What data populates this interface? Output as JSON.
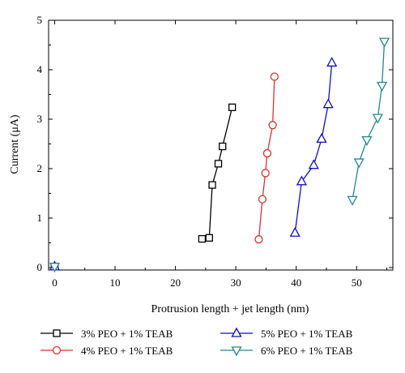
{
  "chart_data": {
    "type": "line",
    "xlabel": "Protrusion length + jet length (nm)",
    "ylabel": "Current (μA)",
    "xlim": [
      -1,
      56
    ],
    "ylim": [
      -0.05,
      5
    ],
    "xticks": [
      0,
      10,
      20,
      30,
      40,
      50
    ],
    "yticks": [
      0,
      1,
      2,
      3,
      4,
      5
    ],
    "grid": false,
    "legend_position": "bottom",
    "series": [
      {
        "name": "3% PEO + 1% TEAB",
        "color": "#000000",
        "marker": "square",
        "x": [
          0,
          24.4,
          25.6,
          26.1,
          27.1,
          27.8,
          29.4
        ],
        "y": [
          0.02,
          0.58,
          0.6,
          1.67,
          2.1,
          2.45,
          3.24
        ]
      },
      {
        "name": "4% PEO + 1% TEAB",
        "color": "#e03030",
        "marker": "circle",
        "x": [
          0,
          33.8,
          34.4,
          34.9,
          35.2,
          36.1,
          36.4
        ],
        "y": [
          0.02,
          0.57,
          1.38,
          1.91,
          2.31,
          2.88,
          3.86
        ]
      },
      {
        "name": "5% PEO + 1% TEAB",
        "color": "#1010c8",
        "marker": "triangle-up",
        "x": [
          0,
          39.8,
          40.9,
          42.9,
          44.2,
          45.3,
          45.9
        ],
        "y": [
          0.02,
          0.7,
          1.74,
          2.07,
          2.6,
          3.3,
          4.14
        ]
      },
      {
        "name": "6% PEO + 1% TEAB",
        "color": "#1e8c8c",
        "marker": "triangle-down",
        "x": [
          0,
          49.3,
          50.4,
          51.7,
          53.5,
          54.2,
          54.6
        ],
        "y": [
          0.02,
          1.37,
          2.13,
          2.58,
          3.03,
          3.68,
          4.57
        ]
      }
    ]
  }
}
